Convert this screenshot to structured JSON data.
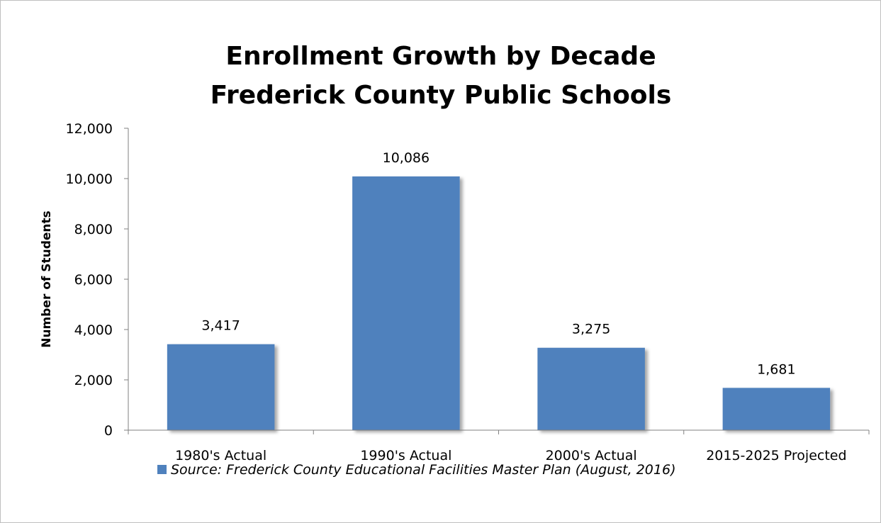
{
  "chart_data": {
    "type": "bar",
    "title_lines": [
      "Enrollment Growth by Decade",
      "Frederick County Public Schools"
    ],
    "ylabel": "Number of Students",
    "xlabel": "",
    "categories": [
      "1980's Actual",
      "1990's Actual",
      "2000's Actual",
      "2015-2025 Projected"
    ],
    "series": [
      {
        "name": "Source: Frederick County Educational Facilities Master Plan (August, 2016)",
        "values": [
          3417,
          10086,
          3275,
          1681
        ],
        "data_labels": [
          "3,417",
          "10,086",
          "3,275",
          "1,681"
        ]
      }
    ],
    "ylim": [
      0,
      12000
    ],
    "yticks": [
      0,
      2000,
      4000,
      6000,
      8000,
      10000,
      12000
    ],
    "ytick_labels": [
      "0",
      "2,000",
      "4,000",
      "6,000",
      "8,000",
      "10,000",
      "12,000"
    ],
    "grid": false,
    "legend_position": "bottom",
    "bar_color": "#4f81bd"
  }
}
